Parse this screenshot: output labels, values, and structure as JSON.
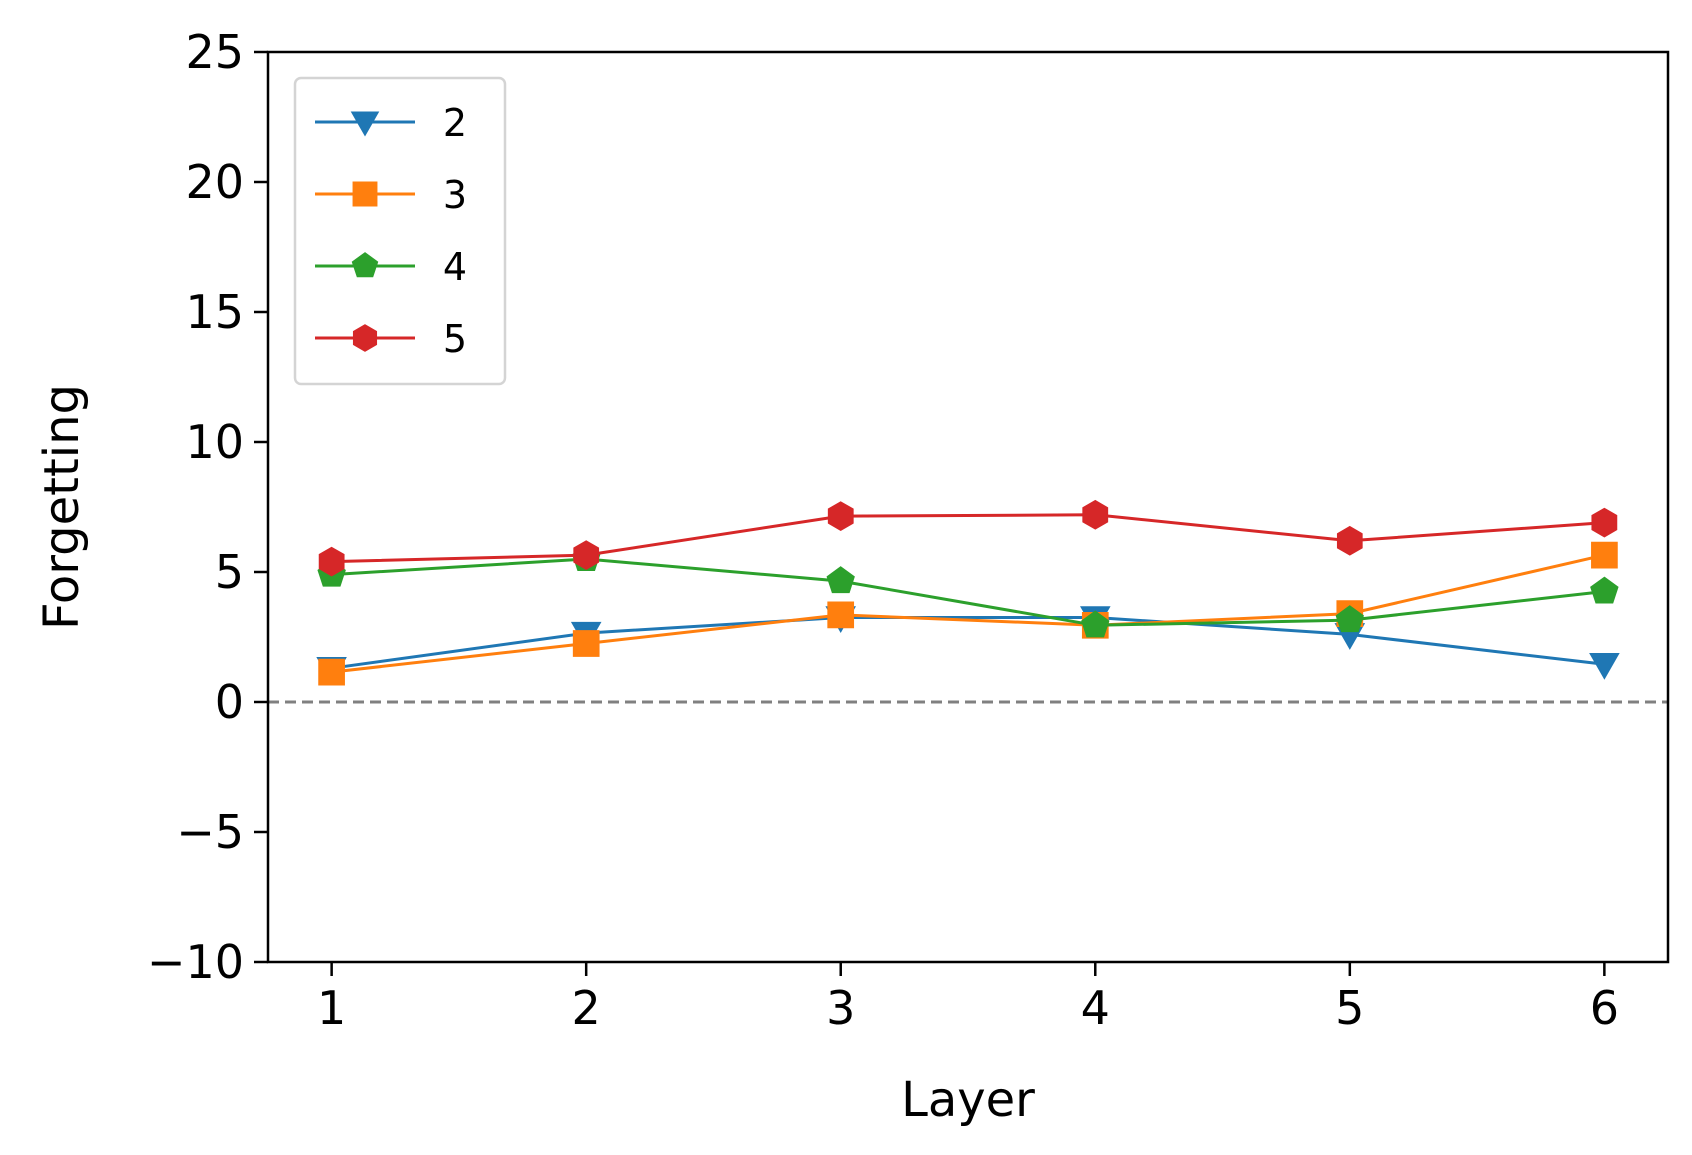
{
  "chart_data": {
    "type": "line",
    "xlabel": "Layer",
    "ylabel": "Forgetting",
    "x": [
      1,
      2,
      3,
      4,
      5,
      6
    ],
    "xlim": [
      0.75,
      6.25
    ],
    "ylim": [
      -10,
      25
    ],
    "yticks": [
      -10,
      -5,
      0,
      5,
      10,
      15,
      20,
      25
    ],
    "ytick_labels": [
      "−10",
      "−5",
      "0",
      "5",
      "10",
      "15",
      "20",
      "25"
    ],
    "xticks": [
      1,
      2,
      3,
      4,
      5,
      6
    ],
    "xtick_labels": [
      "1",
      "2",
      "3",
      "4",
      "5",
      "6"
    ],
    "reference_line": {
      "y": 0,
      "style": "dashed",
      "color": "#808080"
    },
    "grid": false,
    "legend_position": "top-left",
    "series": [
      {
        "name": "2",
        "marker": "triangle-down",
        "color": "#1f77b4",
        "values": [
          1.3,
          2.65,
          3.25,
          3.25,
          2.6,
          1.45
        ]
      },
      {
        "name": "3",
        "marker": "square",
        "color": "#ff7f0e",
        "values": [
          1.15,
          2.25,
          3.35,
          2.95,
          3.4,
          5.65
        ]
      },
      {
        "name": "4",
        "marker": "pentagon",
        "color": "#2ca02c",
        "values": [
          4.9,
          5.5,
          4.65,
          2.95,
          3.15,
          4.25
        ]
      },
      {
        "name": "5",
        "marker": "hexagon",
        "color": "#d62728",
        "values": [
          5.4,
          5.65,
          7.15,
          7.2,
          6.2,
          6.9
        ]
      }
    ]
  }
}
